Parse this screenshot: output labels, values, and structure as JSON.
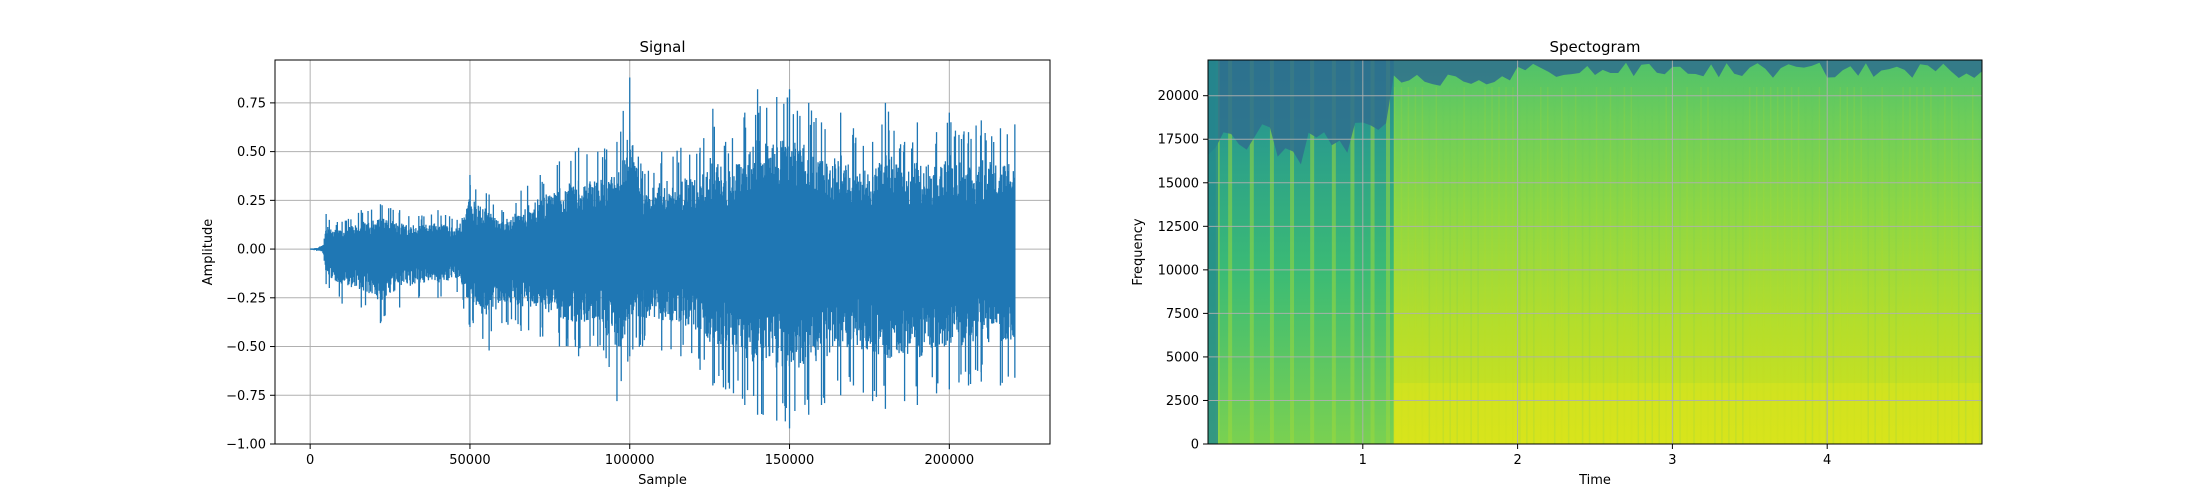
{
  "chart_data": [
    {
      "type": "line",
      "title": "Signal",
      "xlabel": "Sample",
      "ylabel": "Amplitude",
      "xlim": [
        -11000,
        231500
      ],
      "ylim": [
        -1.0,
        0.97
      ],
      "x_ticks": [
        0,
        50000,
        100000,
        150000,
        200000
      ],
      "y_ticks": [
        -1.0,
        -0.75,
        -0.5,
        -0.25,
        0.0,
        0.25,
        0.5,
        0.75
      ],
      "x_tick_labels": [
        "0",
        "50000",
        "100000",
        "150000",
        "200000"
      ],
      "y_tick_labels": [
        "−1.00",
        "−0.75",
        "−0.50",
        "−0.25",
        "0.00",
        "0.25",
        "0.50",
        "0.75"
      ],
      "grid": true,
      "color": "#1f77b4",
      "series": [
        {
          "x": [
            0,
            4000,
            5000,
            6000,
            10000,
            16000,
            22000,
            28000,
            34000,
            40000,
            46000,
            50000,
            56000,
            60000,
            66000,
            72000,
            78000,
            84000,
            90000,
            96000,
            100000,
            104000,
            110000,
            116000,
            122000,
            126000,
            130000,
            136000,
            140000,
            146000,
            150000,
            156000,
            160000,
            166000,
            170000,
            176000,
            180000,
            186000,
            190000,
            196000,
            200000,
            206000,
            210000,
            216000,
            220500
          ],
          "upper": [
            0.0,
            0.02,
            0.18,
            0.15,
            0.14,
            0.2,
            0.23,
            0.2,
            0.17,
            0.2,
            0.15,
            0.38,
            0.28,
            0.2,
            0.3,
            0.38,
            0.45,
            0.52,
            0.5,
            0.55,
            0.88,
            0.4,
            0.5,
            0.52,
            0.52,
            0.72,
            0.55,
            0.7,
            0.82,
            0.78,
            0.82,
            0.75,
            0.65,
            0.7,
            0.62,
            0.55,
            0.75,
            0.55,
            0.65,
            0.6,
            0.7,
            0.6,
            0.66,
            0.62,
            0.64
          ],
          "lower": [
            0.0,
            -0.02,
            -0.18,
            -0.2,
            -0.28,
            -0.3,
            -0.38,
            -0.3,
            -0.25,
            -0.25,
            -0.22,
            -0.4,
            -0.52,
            -0.38,
            -0.42,
            -0.45,
            -0.5,
            -0.55,
            -0.5,
            -0.78,
            -0.55,
            -0.5,
            -0.52,
            -0.55,
            -0.62,
            -0.7,
            -0.72,
            -0.8,
            -0.85,
            -0.88,
            -0.92,
            -0.85,
            -0.8,
            -0.75,
            -0.7,
            -0.78,
            -0.82,
            -0.78,
            -0.8,
            -0.74,
            -0.72,
            -0.7,
            -0.68,
            -0.7,
            -0.66
          ]
        }
      ]
    },
    {
      "type": "heatmap",
      "title": "Spectogram",
      "xlabel": "Time",
      "ylabel": "Frequency",
      "xlim": [
        0,
        5.0
      ],
      "ylim": [
        0,
        22050
      ],
      "x_ticks": [
        1,
        2,
        3,
        4
      ],
      "y_ticks": [
        0,
        2500,
        5000,
        7500,
        10000,
        12500,
        15000,
        17500,
        20000
      ],
      "x_tick_labels": [
        "1",
        "2",
        "3",
        "4"
      ],
      "y_tick_labels": [
        "0",
        "2500",
        "5000",
        "7500",
        "10000",
        "12500",
        "15000",
        "17500",
        "20000"
      ],
      "grid": true,
      "colormap": "viridis",
      "low_color": "#2f6f8e",
      "mid_color": "#5ec962",
      "high_color": "#c8e020"
    }
  ]
}
